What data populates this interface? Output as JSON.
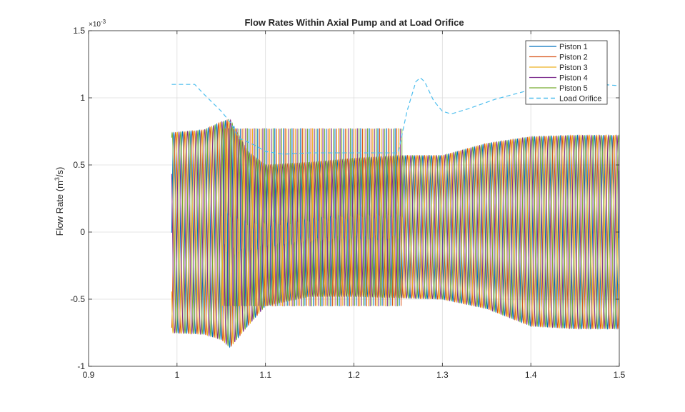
{
  "chart_data": {
    "type": "line",
    "title": "Flow Rates Within Axial Pump and at Load Orifice",
    "ylabel_text": "Flow  Rate  (m",
    "ylabel_sup": "3",
    "ylabel_tail": "/s)",
    "exponent_base": "×10",
    "exponent_power": "-3",
    "xlim": [
      0.9,
      1.5
    ],
    "ylim": [
      -1,
      1.5
    ],
    "xticks": [
      "0.9",
      "1",
      "1.1",
      "1.2",
      "1.3",
      "1.4",
      "1.5"
    ],
    "yticks": [
      "-1",
      "-0.5",
      "0",
      "0.5",
      "1",
      "1.5"
    ],
    "grid": true,
    "legend_position": "top-right",
    "series": [
      {
        "name": "Piston 1",
        "color": "#0072BD",
        "dashed": false,
        "phase": 0
      },
      {
        "name": "Piston 2",
        "color": "#D95319",
        "dashed": false,
        "phase": 0.2
      },
      {
        "name": "Piston 3",
        "color": "#EDB120",
        "dashed": false,
        "phase": 0.4
      },
      {
        "name": "Piston 4",
        "color": "#7E2F8E",
        "dashed": false,
        "phase": 0.6
      },
      {
        "name": "Piston 5",
        "color": "#77AC30",
        "dashed": false,
        "phase": 0.8
      },
      {
        "name": "Load Orifice",
        "color": "#4DBEEE",
        "dashed": true,
        "phase": 0
      }
    ],
    "signal": {
      "t_start": 0.994,
      "t_end": 1.5,
      "oscillation_frequency_hz": 103,
      "amplitude_envelope": {
        "t": [
          0.994,
          1.03,
          1.05,
          1.06,
          1.08,
          1.1,
          1.15,
          1.2,
          1.25,
          1.3,
          1.35,
          1.4,
          1.45,
          1.5
        ],
        "max": [
          0.74,
          0.76,
          0.82,
          0.84,
          0.6,
          0.5,
          0.52,
          0.55,
          0.57,
          0.57,
          0.66,
          0.71,
          0.72,
          0.72
        ],
        "min": [
          -0.75,
          -0.76,
          -0.8,
          -0.86,
          -0.7,
          -0.55,
          -0.48,
          -0.48,
          -0.49,
          -0.5,
          -0.57,
          -0.7,
          -0.72,
          -0.72
        ]
      },
      "switching_spikes": {
        "t_start": 1.05,
        "t_end": 1.255,
        "high": 0.77,
        "low": -0.55
      },
      "load_orifice": {
        "t": [
          0.994,
          1.0,
          1.02,
          1.03,
          1.05,
          1.06,
          1.07,
          1.09,
          1.1,
          1.12,
          1.15,
          1.2,
          1.25,
          1.26,
          1.27,
          1.275,
          1.28,
          1.29,
          1.3,
          1.31,
          1.33,
          1.36,
          1.4,
          1.45,
          1.48,
          1.5
        ],
        "values": [
          1.1,
          1.1,
          1.1,
          1.03,
          0.9,
          0.82,
          0.7,
          0.64,
          0.6,
          0.58,
          0.59,
          0.59,
          0.59,
          0.9,
          1.12,
          1.15,
          1.12,
          0.98,
          0.9,
          0.88,
          0.92,
          0.99,
          1.06,
          1.1,
          1.1,
          1.09
        ]
      }
    }
  }
}
